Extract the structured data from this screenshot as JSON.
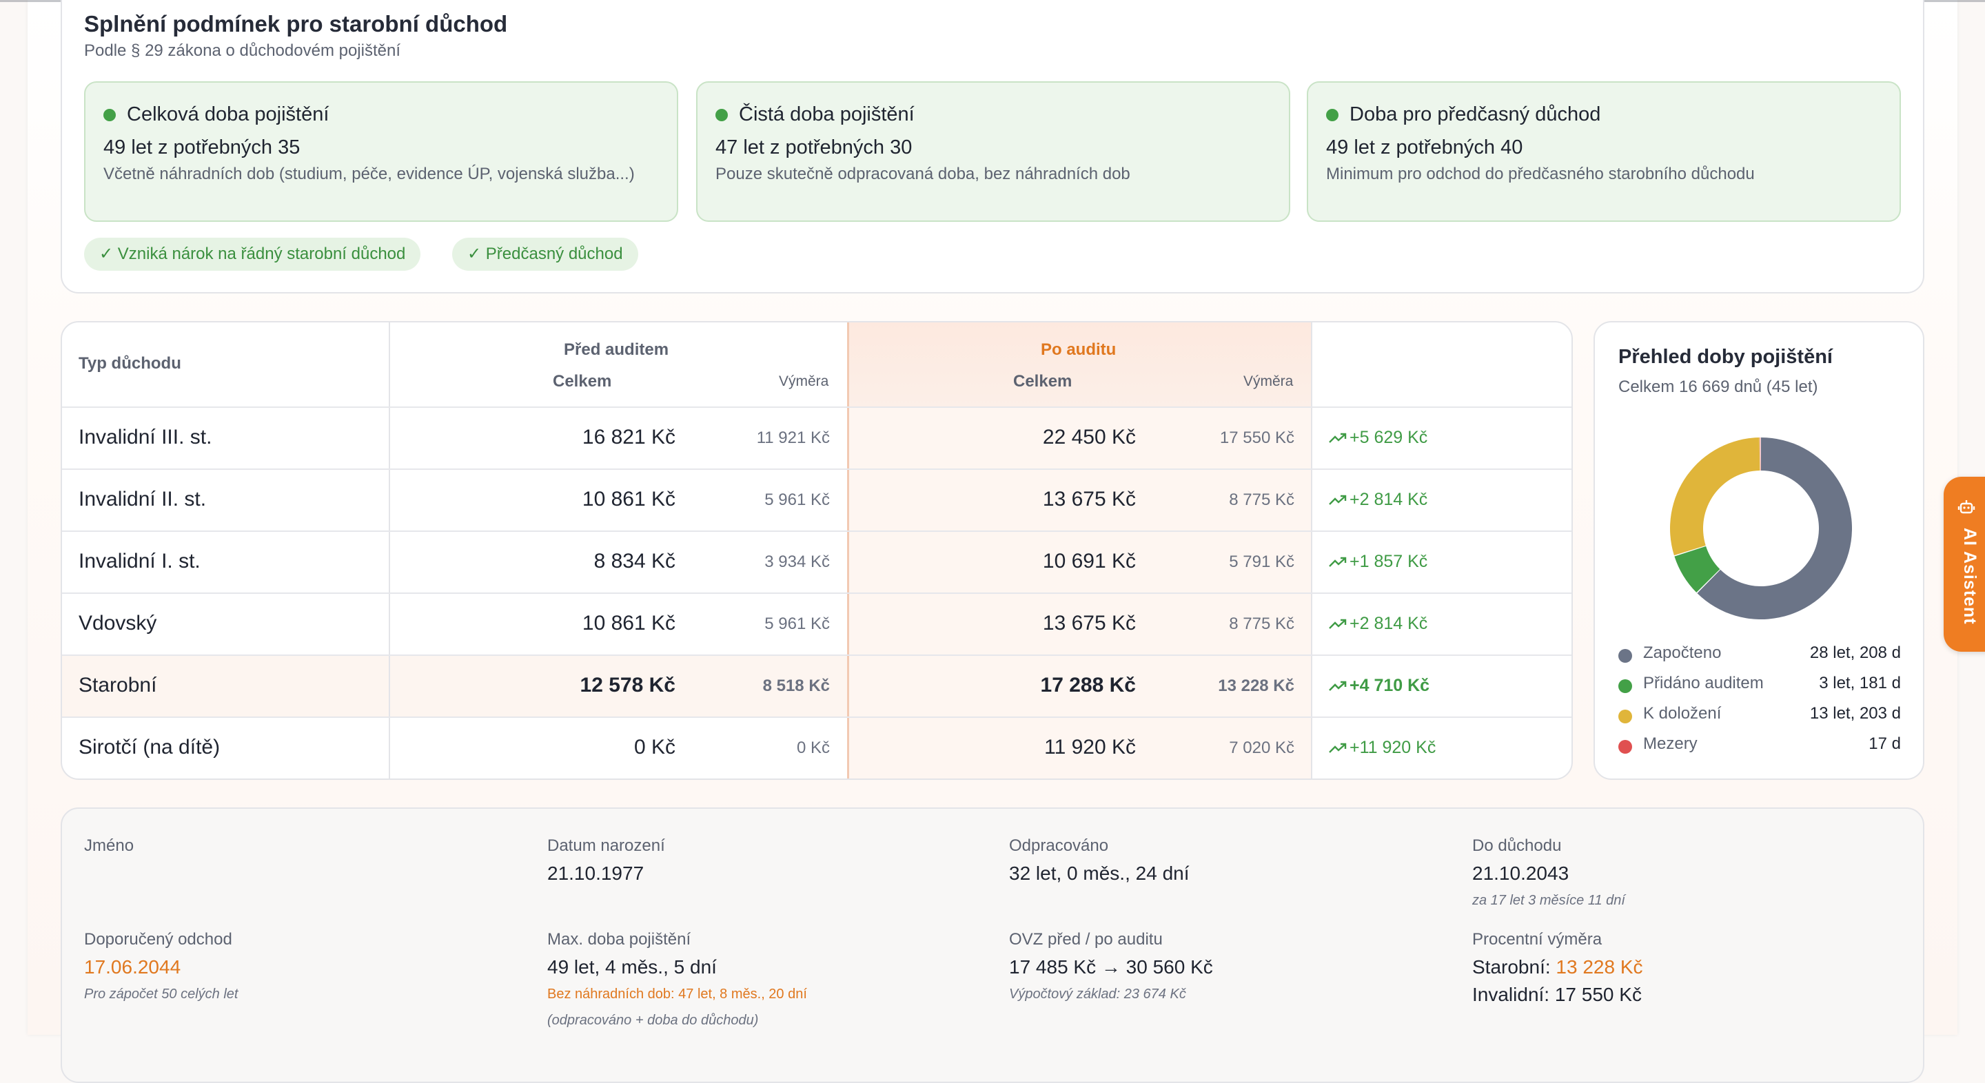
{
  "conditions": {
    "title": "Splnění podmínek pro starobní důchod",
    "subtitle": "Podle § 29 zákona o důchodovém pojištění",
    "cards": [
      {
        "title": "Celková doba pojištění",
        "value": "49 let z potřebných 35",
        "desc": "Včetně náhradních dob (studium, péče, evidence ÚP, vojenská služba...)",
        "status_color": "#43a047"
      },
      {
        "title": "Čistá doba pojištění",
        "value": "47 let z potřebných 30",
        "desc": "Pouze skutečně odpracovaná doba, bez náhradních dob",
        "status_color": "#43a047"
      },
      {
        "title": "Doba pro předčasný důchod",
        "value": "49 let z potřebných 40",
        "desc": "Minimum pro odchod do předčasného starobního důchodu",
        "status_color": "#43a047"
      }
    ],
    "badges": [
      "✓ Vzniká nárok na řádný starobní důchod",
      "✓ Předčasný důchod"
    ]
  },
  "pension_table": {
    "col_type": "Typ důchodu",
    "group_before": "Před auditem",
    "group_after": "Po auditu",
    "col_total": "Celkem",
    "col_vymera": "Výměra",
    "rows": [
      {
        "type": "Invalidní III. st.",
        "before_total": "16 821 Kč",
        "before_vymera": "11 921 Kč",
        "after_total": "22 450 Kč",
        "after_vymera": "17 550 Kč",
        "diff": "+5 629 Kč"
      },
      {
        "type": "Invalidní II. st.",
        "before_total": "10 861 Kč",
        "before_vymera": "5 961 Kč",
        "after_total": "13 675 Kč",
        "after_vymera": "8 775 Kč",
        "diff": "+2 814 Kč"
      },
      {
        "type": "Invalidní I. st.",
        "before_total": "8 834 Kč",
        "before_vymera": "3 934 Kč",
        "after_total": "10 691 Kč",
        "after_vymera": "5 791 Kč",
        "diff": "+1 857 Kč"
      },
      {
        "type": "Vdovský",
        "before_total": "10 861 Kč",
        "before_vymera": "5 961 Kč",
        "after_total": "13 675 Kč",
        "after_vymera": "8 775 Kč",
        "diff": "+2 814 Kč"
      },
      {
        "type": "Starobní",
        "before_total": "12 578 Kč",
        "before_vymera": "8 518 Kč",
        "after_total": "17 288 Kč",
        "after_vymera": "13 228 Kč",
        "diff": "+4 710 Kč"
      },
      {
        "type": "Sirotčí (na dítě)",
        "before_total": "0 Kč",
        "before_vymera": "0 Kč",
        "after_total": "11 920 Kč",
        "after_vymera": "7 020 Kč",
        "diff": "+11 920 Kč"
      }
    ]
  },
  "insurance_overview": {
    "title": "Přehled doby pojištění",
    "subtitle": "Celkem 16 669 dnů (45 let)",
    "segments": [
      {
        "label": "Započteno",
        "value": "28 let, 208 d",
        "days": 10428,
        "color": "#6b7487"
      },
      {
        "label": "Přidáno auditem",
        "value": "3 let, 181 d",
        "days": 1276,
        "color": "#43a047"
      },
      {
        "label": "K doložení",
        "value": "13 let, 203 d",
        "days": 4948,
        "color": "#e0b53a"
      },
      {
        "label": "Mezery",
        "value": "17 d",
        "days": 17,
        "color": "#e05050"
      }
    ]
  },
  "info": {
    "name_label": "Jméno",
    "name_value": "",
    "birth_label": "Datum narození",
    "birth_value": "21.10.1977",
    "worked_label": "Odpracováno",
    "worked_value": "32 let, 0 měs., 24 dní",
    "retire_label": "Do důchodu",
    "retire_value": "21.10.2043",
    "retire_note": "za 17 let 3 měsíce 11 dní",
    "recommended_label": "Doporučený odchod",
    "recommended_value": "17.06.2044",
    "recommended_note": "Pro zápočet 50 celých let",
    "maxins_label": "Max. doba pojištění",
    "maxins_value": "49 let, 4 měs., 5 dní",
    "maxins_note1": "Bez náhradních dob: 47 let, 8 měs., 20 dní",
    "maxins_note2": "(odpracováno + doba do důchodu)",
    "ovz_label": "OVZ před / po auditu",
    "ovz_value": "17 485 Kč → 30 560 Kč",
    "ovz_note": "Výpočtový základ: 23 674 Kč",
    "pct_label": "Procentní výměra",
    "pct_old_label": "Starobní: ",
    "pct_old_value": "13 228 Kč",
    "pct_inv": "Invalidní: 17 550 Kč"
  },
  "ai_tab": {
    "label": "AI Asistent",
    "icon": "robot-icon"
  }
}
